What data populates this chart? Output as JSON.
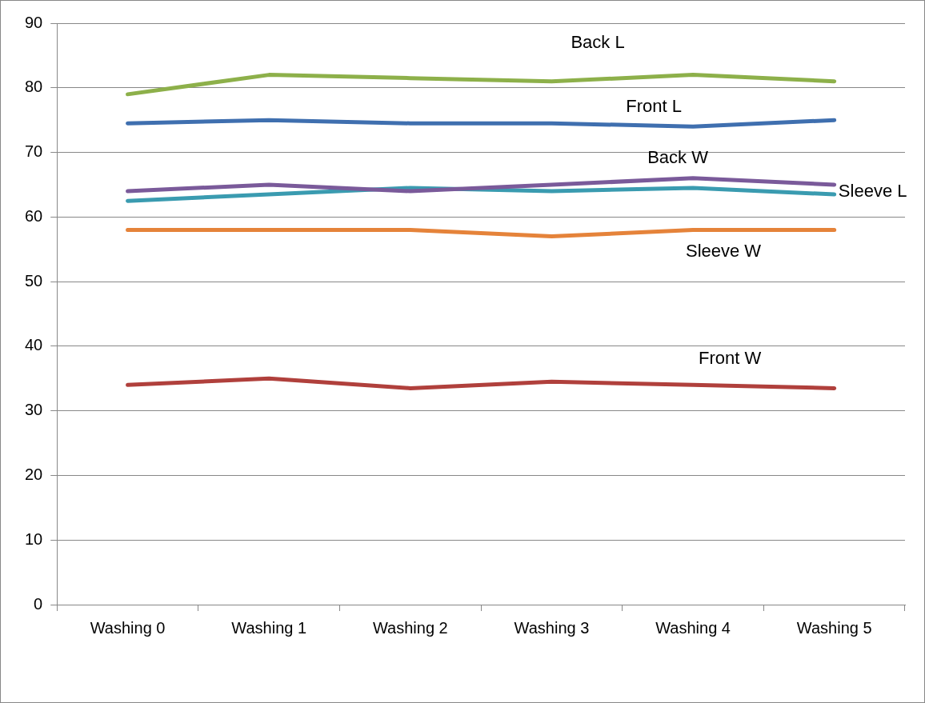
{
  "chart_data": {
    "type": "line",
    "categories": [
      "Washing 0",
      "Washing 1",
      "Washing 2",
      "Washing 3",
      "Washing 4",
      "Washing 5"
    ],
    "ylim": [
      0,
      90
    ],
    "yticks": [
      0,
      10,
      20,
      30,
      40,
      50,
      60,
      70,
      80,
      90
    ],
    "grid": "y",
    "legend": false,
    "marker": "none",
    "line_style": "solid",
    "series": [
      {
        "name": "Back L",
        "color": "#8db04a",
        "values": [
          79,
          82,
          81.5,
          81,
          82,
          81
        ]
      },
      {
        "name": "Front L",
        "color": "#3f6faf",
        "values": [
          74.5,
          75,
          74.5,
          74.5,
          74,
          75
        ]
      },
      {
        "name": "Back W",
        "color": "#7a5a9a",
        "values": [
          64,
          65,
          64,
          65,
          66,
          65
        ]
      },
      {
        "name": "Sleeve L",
        "color": "#3a9bb0",
        "values": [
          62.5,
          63.5,
          64.5,
          64,
          64.5,
          63.5
        ]
      },
      {
        "name": "Sleeve W",
        "color": "#e5833a",
        "values": [
          58,
          58,
          58,
          57,
          58,
          58
        ]
      },
      {
        "name": "Front W",
        "color": "#b0403c",
        "values": [
          34,
          35,
          33.5,
          34.5,
          34,
          33.5
        ]
      }
    ]
  }
}
